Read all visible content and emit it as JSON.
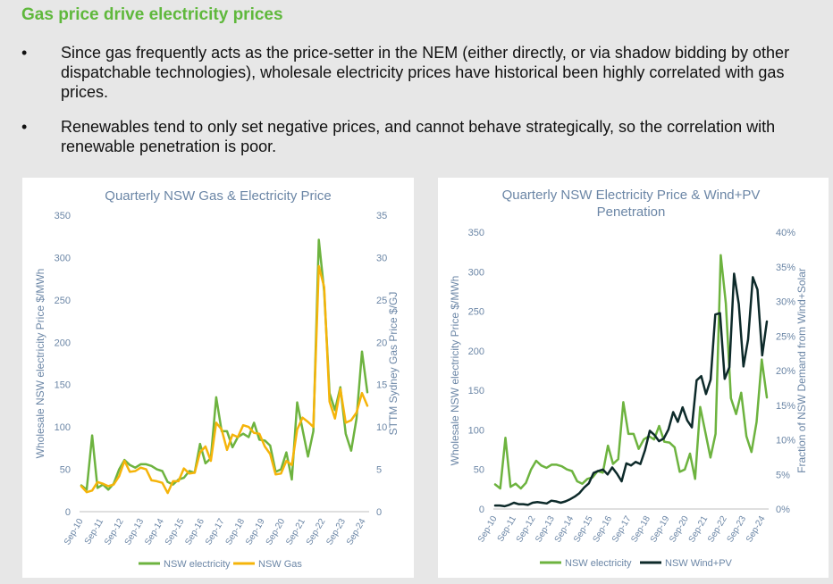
{
  "slide": {
    "title": "Gas price drive electricity prices",
    "bullets": [
      {
        "symbol": "•",
        "text": "Since gas frequently acts as the price-setter in the NEM (either directly, or via shadow bidding by other dispatchable technologies), wholesale electricity prices have historical been highly correlated with gas prices."
      },
      {
        "symbol": "•",
        "text": "Renewables tend to only set negative prices, and cannot behave strategically, so the correlation with renewable penetration is poor."
      }
    ]
  },
  "colors": {
    "accent": "#5fb83c",
    "electricity": "#6db33f",
    "gas": "#f5b40a",
    "windpv": "#0d2a2a",
    "axis_text": "#6b86a6",
    "gridline": "#e0e0e0"
  },
  "chart_data": [
    {
      "type": "line",
      "title": "Quarterly NSW Gas & Electricity Price",
      "xlabel": "",
      "ylabel": "Wholesale NSW electricity Price $/MWh",
      "y2label": "STTM Sydney Gas Price $/GJ",
      "ylim": [
        0,
        350
      ],
      "yticks": [
        "0",
        "50",
        "100",
        "150",
        "200",
        "250",
        "300",
        "350"
      ],
      "y2lim": [
        0,
        35
      ],
      "y2ticks": [
        "0",
        "5",
        "10",
        "15",
        "20",
        "25",
        "30",
        "35"
      ],
      "x_tick_labels": [
        "Sep-10",
        "Sep-11",
        "Sep-12",
        "Sep-13",
        "Sep-14",
        "Sep-15",
        "Sep-16",
        "Sep-17",
        "Sep-18",
        "Sep-19",
        "Sep-20",
        "Sep-21",
        "Sep-22",
        "Sep-23",
        "Sep-24"
      ],
      "grid": false,
      "legend_position": "bottom",
      "series": [
        {
          "name": "NSW electricity",
          "axis": "left",
          "color": "#6db33f",
          "values": [
            31,
            26,
            90,
            28,
            32,
            26,
            33,
            50,
            61,
            55,
            52,
            56,
            56,
            54,
            50,
            48,
            35,
            32,
            38,
            40,
            48,
            46,
            80,
            57,
            63,
            135,
            95,
            95,
            76,
            88,
            92,
            88,
            105,
            85,
            84,
            78,
            47,
            50,
            70,
            38,
            129,
            97,
            65,
            95,
            321,
            260,
            140,
            120,
            147,
            92,
            72,
            110,
            189,
            141
          ]
        },
        {
          "name": "NSW Gas",
          "axis": "right",
          "color": "#f5b40a",
          "values": [
            3.0,
            2.3,
            2.5,
            3.5,
            3.3,
            3.0,
            3.2,
            4.2,
            6.0,
            4.7,
            4.8,
            5.2,
            5.0,
            3.7,
            3.6,
            3.4,
            2.2,
            3.6,
            3.6,
            5.1,
            4.5,
            4.6,
            7.0,
            7.7,
            6.0,
            10.5,
            9.7,
            7.3,
            9.1,
            8.8,
            10.2,
            10.0,
            9.3,
            9.2,
            7.7,
            6.8,
            4.4,
            4.5,
            6.0,
            5.5,
            9.7,
            11.1,
            10.6,
            10.0,
            29.0,
            26.5,
            13.0,
            11.0,
            14.5,
            10.5,
            10.8,
            11.7,
            14.0,
            12.5
          ]
        }
      ]
    },
    {
      "type": "line",
      "title": "Quarterly NSW Electricity Price & Wind+PV Penetration",
      "xlabel": "",
      "ylabel": "Wholesale NSW electricity Price $/MWh",
      "y2label": "Fraction of NSW Demand from Wind+Solar",
      "ylim": [
        0,
        350
      ],
      "yticks": [
        "0",
        "50",
        "100",
        "150",
        "200",
        "250",
        "300",
        "350"
      ],
      "y2lim": [
        0,
        0.4
      ],
      "y2ticks": [
        "0%",
        "5%",
        "10%",
        "15%",
        "20%",
        "25%",
        "30%",
        "35%",
        "40%"
      ],
      "x_tick_labels": [
        "Sep-10",
        "Sep-11",
        "Sep-12",
        "Sep-13",
        "Sep-14",
        "Sep-15",
        "Sep-16",
        "Sep-17",
        "Sep-18",
        "Sep-19",
        "Sep-20",
        "Sep-21",
        "Sep-22",
        "Sep-23",
        "Sep-24"
      ],
      "grid": false,
      "legend_position": "bottom",
      "series": [
        {
          "name": "NSW electricity",
          "axis": "left",
          "color": "#6db33f",
          "values": [
            31,
            26,
            90,
            28,
            32,
            26,
            33,
            50,
            61,
            55,
            52,
            56,
            56,
            54,
            50,
            48,
            35,
            32,
            38,
            40,
            48,
            46,
            80,
            57,
            63,
            135,
            95,
            95,
            76,
            88,
            92,
            88,
            105,
            85,
            84,
            78,
            47,
            50,
            70,
            38,
            129,
            97,
            65,
            95,
            321,
            260,
            140,
            120,
            147,
            92,
            72,
            110,
            189,
            141
          ]
        },
        {
          "name": "NSW Wind+PV",
          "axis": "right",
          "color": "#0d2a2a",
          "values": [
            0.005,
            0.005,
            0.004,
            0.006,
            0.009,
            0.007,
            0.007,
            0.006,
            0.009,
            0.01,
            0.009,
            0.008,
            0.012,
            0.011,
            0.009,
            0.011,
            0.014,
            0.018,
            0.023,
            0.031,
            0.037,
            0.052,
            0.055,
            0.057,
            0.05,
            0.06,
            0.051,
            0.04,
            0.066,
            0.063,
            0.068,
            0.065,
            0.085,
            0.113,
            0.107,
            0.098,
            0.102,
            0.115,
            0.14,
            0.126,
            0.147,
            0.128,
            0.118,
            0.186,
            0.192,
            0.166,
            0.187,
            0.281,
            0.283,
            0.188,
            0.205,
            0.34,
            0.296,
            0.206,
            0.245,
            0.335,
            0.317,
            0.222,
            0.271
          ]
        }
      ]
    }
  ]
}
